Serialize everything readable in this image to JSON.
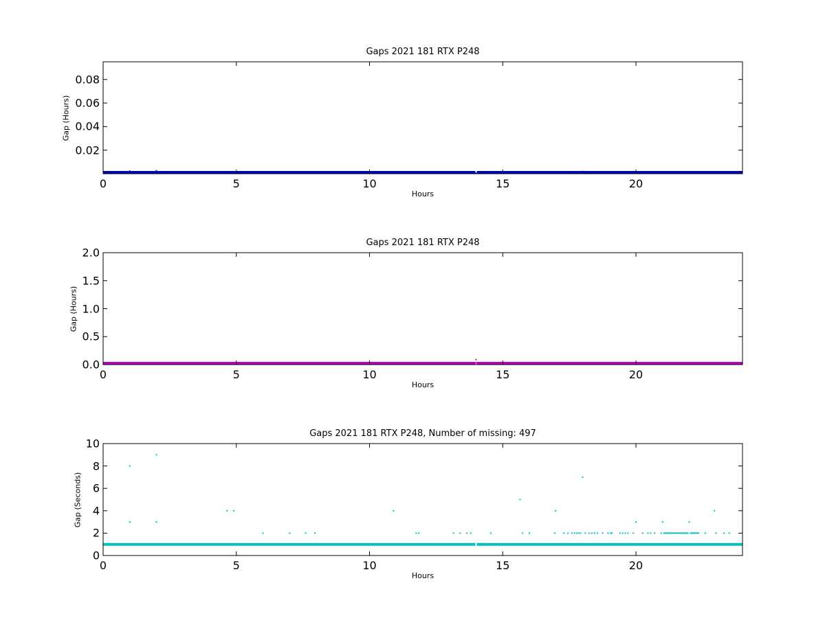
{
  "chart_data": [
    {
      "type": "scatter",
      "title": "Gaps 2021 181 RTX  P248",
      "xlabel": "Hours",
      "ylabel": "Gap (Hours)",
      "xlim": [
        0,
        24
      ],
      "ylim": [
        0,
        0.095
      ],
      "xticks": [
        {
          "value": 0,
          "label": "0"
        },
        {
          "value": 5,
          "label": "5"
        },
        {
          "value": 10,
          "label": "10"
        },
        {
          "value": 15,
          "label": "15"
        },
        {
          "value": 20,
          "label": "20"
        }
      ],
      "yticks": [
        {
          "value": 0.02,
          "label": "0.02"
        },
        {
          "value": 0.04,
          "label": "0.04"
        },
        {
          "value": 0.06,
          "label": "0.06"
        },
        {
          "value": 0.08,
          "label": "0.08"
        }
      ],
      "grid": false,
      "color": "#0000bf",
      "baseline": {
        "y": 0.0003,
        "x_start": 0,
        "x_end": 24
      },
      "points": [
        {
          "x": 1.0,
          "y": 0.0022
        },
        {
          "x": 2.0,
          "y": 0.0025
        },
        {
          "x": 14.0,
          "y": 0.0003
        },
        {
          "x": 15.7,
          "y": 0.0011
        },
        {
          "x": 18.0,
          "y": 0.0019
        }
      ]
    },
    {
      "type": "scatter",
      "title": "Gaps 2021 181 RTX  P248",
      "xlabel": "Hours",
      "ylabel": "Gap (Hours)",
      "xlim": [
        0,
        24
      ],
      "ylim": [
        0,
        2.0
      ],
      "xticks": [
        {
          "value": 0,
          "label": "0"
        },
        {
          "value": 5,
          "label": "5"
        },
        {
          "value": 10,
          "label": "10"
        },
        {
          "value": 15,
          "label": "15"
        },
        {
          "value": 20,
          "label": "20"
        }
      ],
      "yticks": [
        {
          "value": 0.0,
          "label": "0.0"
        },
        {
          "value": 0.5,
          "label": "0.5"
        },
        {
          "value": 1.0,
          "label": "1.0"
        },
        {
          "value": 1.5,
          "label": "1.5"
        },
        {
          "value": 2.0,
          "label": "2.0"
        }
      ],
      "grid": false,
      "color": "#bf00bf",
      "baseline": {
        "y": 0.0003,
        "x_start": 0,
        "x_end": 24
      },
      "points": [
        {
          "x": 14.0,
          "y": 0.09
        },
        {
          "x": 14.0,
          "y": 0.03
        }
      ]
    },
    {
      "type": "scatter",
      "title": "Gaps 2021 181 RTX  P248, Number of missing: 497",
      "xlabel": "Hours",
      "ylabel": "Gap (Seconds)",
      "xlim": [
        0,
        24
      ],
      "ylim": [
        0,
        10
      ],
      "xticks": [
        {
          "value": 0,
          "label": "0"
        },
        {
          "value": 5,
          "label": "5"
        },
        {
          "value": 10,
          "label": "10"
        },
        {
          "value": 15,
          "label": "15"
        },
        {
          "value": 20,
          "label": "20"
        }
      ],
      "yticks": [
        {
          "value": 0,
          "label": "0"
        },
        {
          "value": 2,
          "label": "2"
        },
        {
          "value": 4,
          "label": "4"
        },
        {
          "value": 6,
          "label": "6"
        },
        {
          "value": 8,
          "label": "8"
        },
        {
          "value": 10,
          "label": "10"
        }
      ],
      "grid": false,
      "color": "#00bfbf",
      "baseline": {
        "y": 1,
        "x_start": 0,
        "x_end": 24
      },
      "points": [
        {
          "x": 1.0,
          "y": 8
        },
        {
          "x": 1.0,
          "y": 3
        },
        {
          "x": 2.0,
          "y": 9
        },
        {
          "x": 2.0,
          "y": 3
        },
        {
          "x": 4.65,
          "y": 4
        },
        {
          "x": 4.9,
          "y": 4
        },
        {
          "x": 6.0,
          "y": 2
        },
        {
          "x": 7.0,
          "y": 2
        },
        {
          "x": 7.6,
          "y": 2
        },
        {
          "x": 7.95,
          "y": 2
        },
        {
          "x": 10.9,
          "y": 4
        },
        {
          "x": 11.75,
          "y": 2
        },
        {
          "x": 11.85,
          "y": 2
        },
        {
          "x": 13.15,
          "y": 2
        },
        {
          "x": 13.4,
          "y": 2
        },
        {
          "x": 13.65,
          "y": 2
        },
        {
          "x": 13.8,
          "y": 2
        },
        {
          "x": 14.55,
          "y": 2
        },
        {
          "x": 15.65,
          "y": 5
        },
        {
          "x": 15.75,
          "y": 2
        },
        {
          "x": 16.0,
          "y": 2
        },
        {
          "x": 16.95,
          "y": 2
        },
        {
          "x": 16.98,
          "y": 4
        },
        {
          "x": 17.3,
          "y": 2
        },
        {
          "x": 17.45,
          "y": 2
        },
        {
          "x": 17.6,
          "y": 2
        },
        {
          "x": 17.7,
          "y": 2
        },
        {
          "x": 17.78,
          "y": 2
        },
        {
          "x": 17.85,
          "y": 2
        },
        {
          "x": 17.92,
          "y": 2
        },
        {
          "x": 18.0,
          "y": 7
        },
        {
          "x": 18.1,
          "y": 2
        },
        {
          "x": 18.25,
          "y": 2
        },
        {
          "x": 18.35,
          "y": 2
        },
        {
          "x": 18.45,
          "y": 2
        },
        {
          "x": 18.55,
          "y": 2
        },
        {
          "x": 18.75,
          "y": 2
        },
        {
          "x": 18.95,
          "y": 2
        },
        {
          "x": 19.05,
          "y": 2
        },
        {
          "x": 19.1,
          "y": 2
        },
        {
          "x": 19.4,
          "y": 2
        },
        {
          "x": 19.5,
          "y": 2
        },
        {
          "x": 19.6,
          "y": 2
        },
        {
          "x": 19.7,
          "y": 2
        },
        {
          "x": 19.9,
          "y": 2
        },
        {
          "x": 20.0,
          "y": 3
        },
        {
          "x": 20.25,
          "y": 2
        },
        {
          "x": 20.45,
          "y": 2
        },
        {
          "x": 20.55,
          "y": 2
        },
        {
          "x": 20.7,
          "y": 2
        },
        {
          "x": 20.95,
          "y": 2
        },
        {
          "x": 21.0,
          "y": 3
        },
        {
          "x": 21.05,
          "y": 2
        },
        {
          "x": 21.1,
          "y": 2
        },
        {
          "x": 21.15,
          "y": 2
        },
        {
          "x": 21.2,
          "y": 2
        },
        {
          "x": 21.25,
          "y": 2
        },
        {
          "x": 21.3,
          "y": 2
        },
        {
          "x": 21.35,
          "y": 2
        },
        {
          "x": 21.4,
          "y": 2
        },
        {
          "x": 21.45,
          "y": 2
        },
        {
          "x": 21.5,
          "y": 2
        },
        {
          "x": 21.55,
          "y": 2
        },
        {
          "x": 21.6,
          "y": 2
        },
        {
          "x": 21.65,
          "y": 2
        },
        {
          "x": 21.7,
          "y": 2
        },
        {
          "x": 21.75,
          "y": 2
        },
        {
          "x": 21.8,
          "y": 2
        },
        {
          "x": 21.85,
          "y": 2
        },
        {
          "x": 21.9,
          "y": 2
        },
        {
          "x": 21.95,
          "y": 2
        },
        {
          "x": 22.0,
          "y": 3
        },
        {
          "x": 22.05,
          "y": 2
        },
        {
          "x": 22.1,
          "y": 2
        },
        {
          "x": 22.15,
          "y": 2
        },
        {
          "x": 22.2,
          "y": 2
        },
        {
          "x": 22.25,
          "y": 2
        },
        {
          "x": 22.3,
          "y": 2
        },
        {
          "x": 22.35,
          "y": 2
        },
        {
          "x": 22.6,
          "y": 2
        },
        {
          "x": 22.95,
          "y": 4
        },
        {
          "x": 23.0,
          "y": 2
        },
        {
          "x": 23.3,
          "y": 2
        },
        {
          "x": 23.5,
          "y": 2
        }
      ]
    }
  ]
}
